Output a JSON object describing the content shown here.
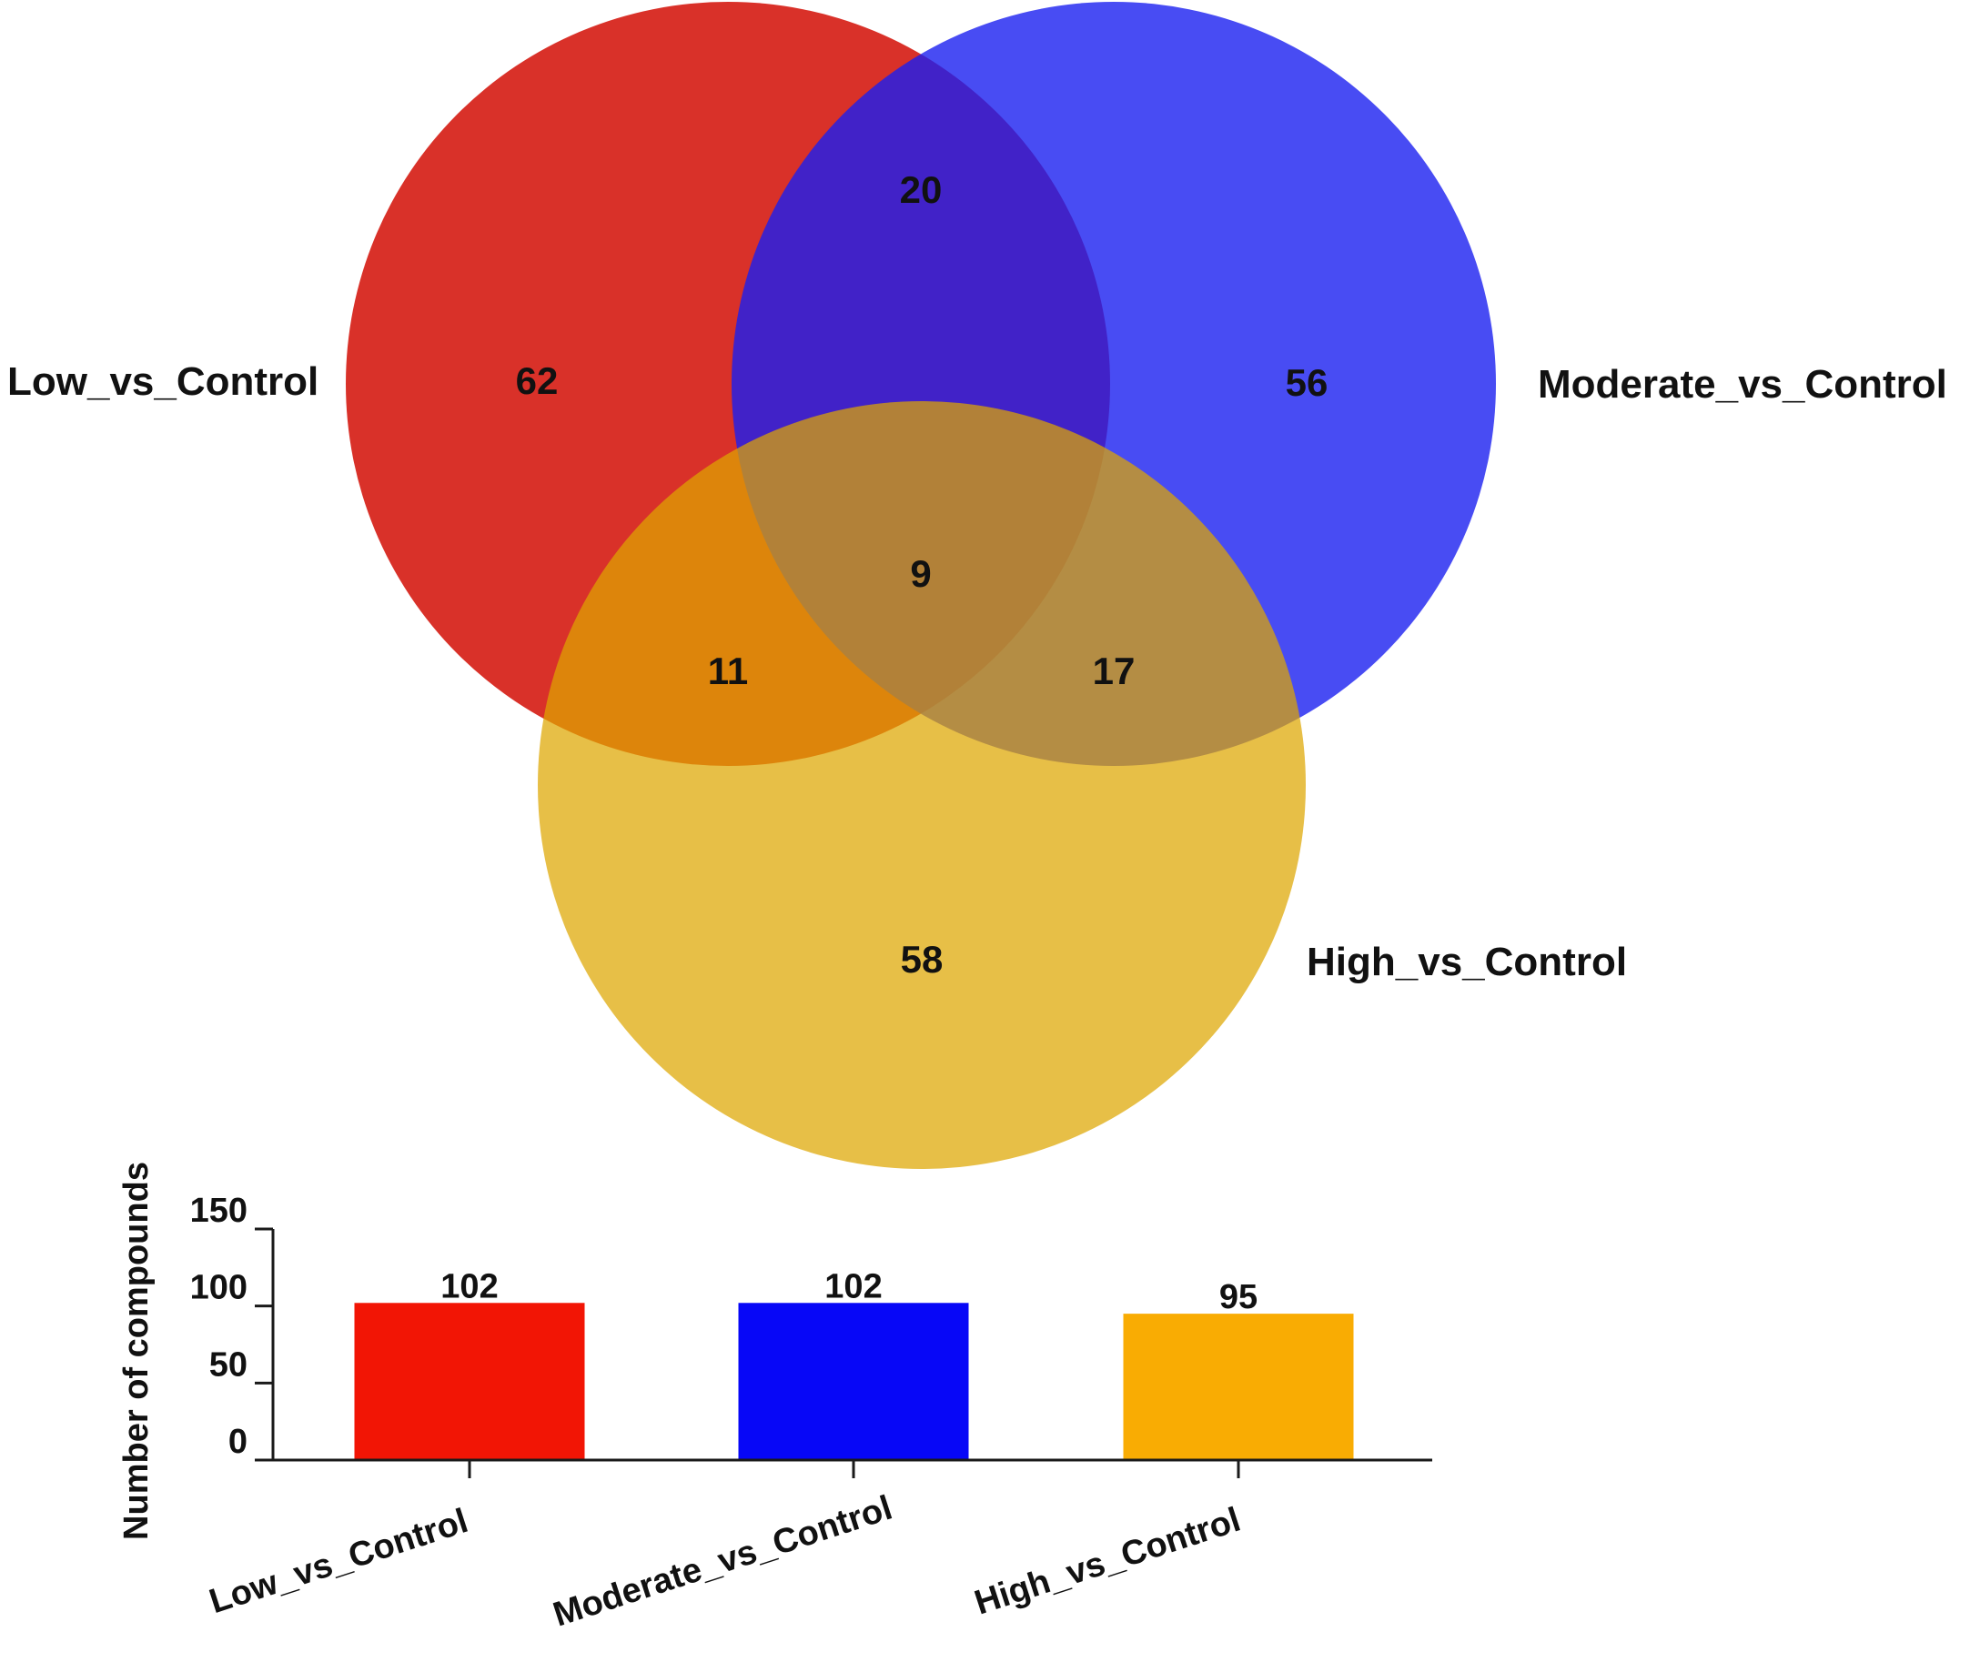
{
  "chart_data": [
    {
      "type": "venn",
      "sets": [
        {
          "name": "Low_vs_Control",
          "color": "#d7261e"
        },
        {
          "name": "Moderate_vs_Control",
          "color": "#1a1ff0"
        },
        {
          "name": "High_vs_Control",
          "color": "#dea600"
        }
      ],
      "regions": {
        "low_only": "62",
        "moderate_only": "56",
        "high_only": "58",
        "low_moderate": "20",
        "low_high": "11",
        "moderate_high": "17",
        "all": "9"
      }
    },
    {
      "type": "bar",
      "categories": [
        "Low_vs_Control",
        "Moderate_vs_Control",
        "High_vs_Control"
      ],
      "values": [
        102,
        102,
        95
      ],
      "value_labels": [
        "102",
        "102",
        "95"
      ],
      "colors": [
        "#f21505",
        "#0707f7",
        "#f9ac03"
      ],
      "ylabel": "Number of compounds",
      "yticks": [
        "0",
        "50",
        "100",
        "150"
      ],
      "ylim": [
        0,
        150
      ]
    }
  ]
}
